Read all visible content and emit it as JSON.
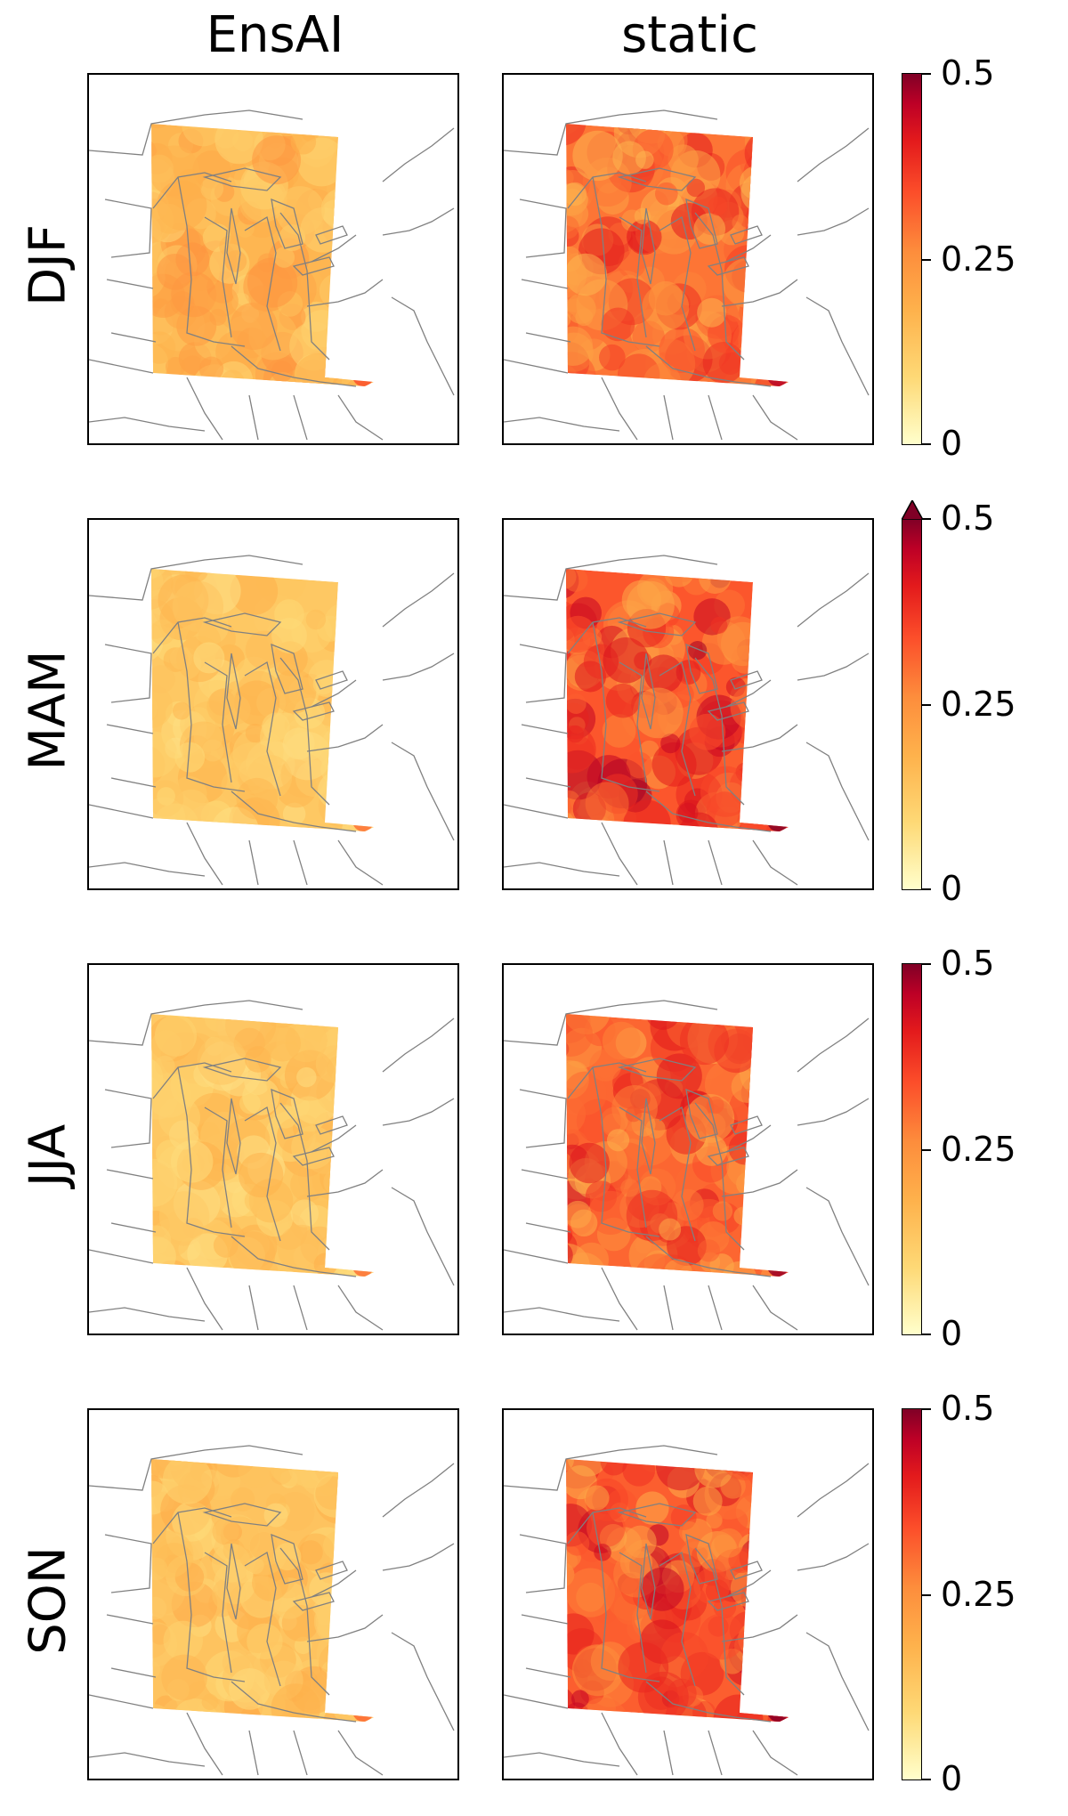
{
  "columns": [
    "EnsAI",
    "static"
  ],
  "rows": [
    "DJF",
    "MAM",
    "JJA",
    "SON"
  ],
  "colorbar": {
    "colormap": "YlOrRd",
    "min": 0,
    "max": 0.5,
    "tick_labels": [
      "0",
      "0.25",
      "0.5"
    ],
    "extend_max_rows": [
      "MAM"
    ]
  },
  "colors": {
    "border": "#808080",
    "low": "#ffffcc",
    "high": "#800026"
  },
  "panels": [
    {
      "row": "DJF",
      "column": "EnsAI",
      "mean": 0.17
    },
    {
      "row": "DJF",
      "column": "static",
      "mean": 0.29
    },
    {
      "row": "MAM",
      "column": "EnsAI",
      "mean": 0.13
    },
    {
      "row": "MAM",
      "column": "static",
      "mean": 0.33
    },
    {
      "row": "JJA",
      "column": "EnsAI",
      "mean": 0.13
    },
    {
      "row": "JJA",
      "column": "static",
      "mean": 0.31
    },
    {
      "row": "SON",
      "column": "EnsAI",
      "mean": 0.14
    },
    {
      "row": "SON",
      "column": "static",
      "mean": 0.32
    }
  ]
}
